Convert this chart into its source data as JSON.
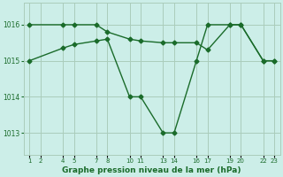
{
  "background_color": "#cceee8",
  "grid_color": "#aaccbb",
  "line_color": "#1a6b2a",
  "marker_color": "#1a6b2a",
  "title": "Graphe pression niveau de la mer (hPa)",
  "title_fontsize": 6.5,
  "xlabel_ticks": [
    "1",
    "2",
    "4",
    "5",
    "7",
    "8",
    "10",
    "11",
    "13",
    "14",
    "16",
    "17",
    "19",
    "20",
    "22",
    "23"
  ],
  "x_positions": [
    1,
    2,
    4,
    5,
    7,
    8,
    10,
    11,
    13,
    14,
    16,
    17,
    19,
    20,
    22,
    23
  ],
  "ylim": [
    1012.4,
    1016.6
  ],
  "yticks": [
    1013,
    1014,
    1015,
    1016
  ],
  "line1_x": [
    1,
    4,
    5,
    7,
    8,
    10,
    11,
    13,
    14,
    16,
    17,
    19,
    20,
    22,
    23
  ],
  "line1_y": [
    1016,
    1016,
    1016,
    1016,
    1015.8,
    1015.6,
    1015.55,
    1015.5,
    1015.5,
    1015.5,
    1015.3,
    1016,
    1016,
    1015,
    1015
  ],
  "line2_x": [
    1,
    4,
    5,
    7,
    8,
    10,
    11,
    13,
    14,
    16,
    17,
    19,
    20,
    22,
    23
  ],
  "line2_y": [
    1015,
    1015.35,
    1015.45,
    1015.55,
    1015.6,
    1014,
    1014,
    1013,
    1013,
    1015,
    1016,
    1016,
    1016,
    1015,
    1015
  ]
}
